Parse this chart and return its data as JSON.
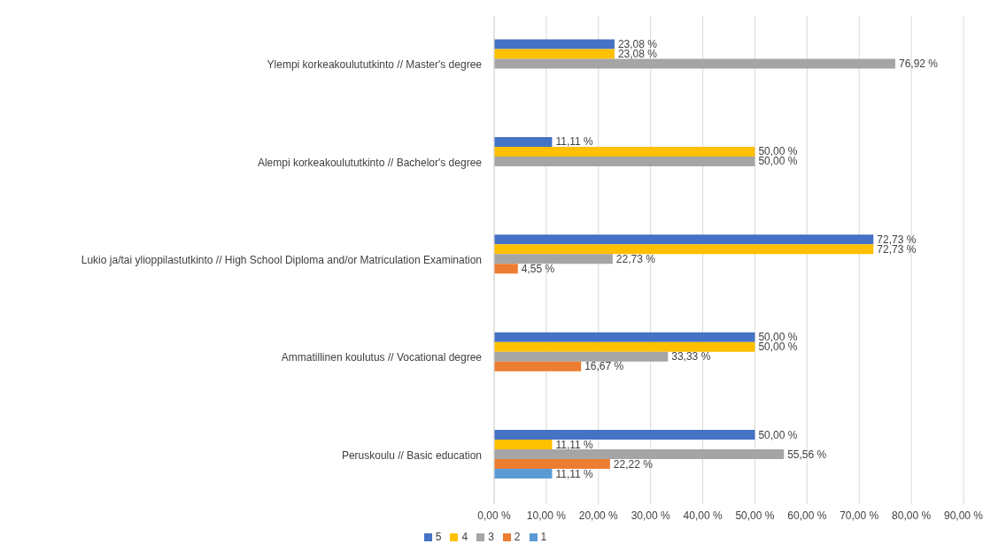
{
  "chart_data": {
    "type": "bar",
    "orientation": "horizontal",
    "categories": [
      "Ylempi korkeakoulututkinto // Master's degree",
      "Alempi korkeakoulututkinto // Bachelor's degree",
      "Lukio ja/tai ylioppilastutkinto // High School Diploma and/or Matriculation Examination",
      "Ammatillinen koulutus // Vocational degree",
      "Peruskoulu // Basic education"
    ],
    "series": [
      {
        "name": "5",
        "color": "#4472c4",
        "values": [
          23.08,
          11.11,
          72.73,
          50.0,
          50.0
        ],
        "value_labels": [
          "23,08 %",
          "11,11 %",
          "72,73 %",
          "50,00 %",
          "50,00 %"
        ]
      },
      {
        "name": "4",
        "color": "#ffc000",
        "values": [
          23.08,
          50.0,
          72.73,
          50.0,
          11.11
        ],
        "value_labels": [
          "23,08 %",
          "50,00 %",
          "72,73 %",
          "50,00 %",
          "11,11 %"
        ]
      },
      {
        "name": "3",
        "color": "#a5a5a5",
        "values": [
          76.92,
          50.0,
          22.73,
          33.33,
          55.56
        ],
        "value_labels": [
          "76,92 %",
          "50,00 %",
          "22,73 %",
          "33,33 %",
          "55,56 %"
        ]
      },
      {
        "name": "2",
        "color": "#ed7d31",
        "values": [
          null,
          null,
          4.55,
          16.67,
          22.22
        ],
        "value_labels": [
          null,
          null,
          "4,55 %",
          "16,67 %",
          "22,22 %"
        ]
      },
      {
        "name": "1",
        "color": "#5b9bd5",
        "values": [
          null,
          null,
          null,
          null,
          11.11
        ],
        "value_labels": [
          null,
          null,
          null,
          null,
          "11,11 %"
        ]
      }
    ],
    "xlim": [
      0,
      90
    ],
    "xticks": [
      {
        "value": 0,
        "label": "0,00 %"
      },
      {
        "value": 10,
        "label": "10,00 %"
      },
      {
        "value": 20,
        "label": "20,00 %"
      },
      {
        "value": 30,
        "label": "30,00 %"
      },
      {
        "value": 40,
        "label": "40,00 %"
      },
      {
        "value": 50,
        "label": "50,00 %"
      },
      {
        "value": 60,
        "label": "60,00 %"
      },
      {
        "value": 70,
        "label": "70,00 %"
      },
      {
        "value": 80,
        "label": "80,00 %"
      },
      {
        "value": 90,
        "label": "90,00 %"
      }
    ],
    "grid": "x",
    "legend": "bottom"
  }
}
